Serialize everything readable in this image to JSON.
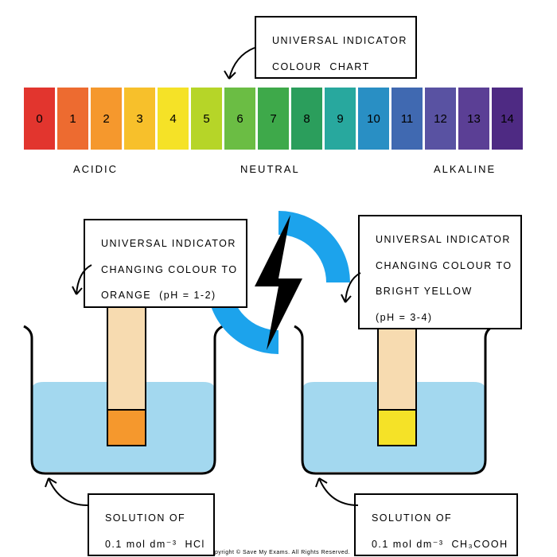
{
  "title_box": {
    "line1": "UNIVERSAL INDICATOR",
    "line2": "COLOUR  CHART"
  },
  "ph_scale": {
    "cells": [
      {
        "label": "0",
        "color": "#e2352e"
      },
      {
        "label": "1",
        "color": "#ed6b30"
      },
      {
        "label": "2",
        "color": "#f5982d"
      },
      {
        "label": "3",
        "color": "#f7c02b"
      },
      {
        "label": "4",
        "color": "#f5e227"
      },
      {
        "label": "5",
        "color": "#b6d528"
      },
      {
        "label": "6",
        "color": "#6bbd44"
      },
      {
        "label": "7",
        "color": "#3ea94a"
      },
      {
        "label": "8",
        "color": "#2b9e5c"
      },
      {
        "label": "9",
        "color": "#28a89e"
      },
      {
        "label": "10",
        "color": "#298fc4"
      },
      {
        "label": "11",
        "color": "#4069b1"
      },
      {
        "label": "12",
        "color": "#5952a2"
      },
      {
        "label": "13",
        "color": "#5b3f95"
      },
      {
        "label": "14",
        "color": "#4e2a83"
      }
    ]
  },
  "range_labels": {
    "acidic": "ACIDIC",
    "neutral": "NEUTRAL",
    "alkaline": "ALKALINE"
  },
  "watermark": {
    "ring_color": "#1ca3ec",
    "bolt_color": "#000000"
  },
  "left_experiment": {
    "indicator_label": {
      "line1": "UNIVERSAL INDICATOR",
      "line2": "CHANGING COLOUR TO",
      "line3": "ORANGE  (pH = 1-2)"
    },
    "solution_label": {
      "line1": "SOLUTION OF",
      "line2": "0.1 mol dm⁻³  HCl"
    },
    "strip_top_color": "#f7dbb0",
    "strip_tip_color": "#f5982d",
    "water_color": "#a3d8ef",
    "beaker_stroke": "#000000"
  },
  "right_experiment": {
    "indicator_label": {
      "line1": "UNIVERSAL INDICATOR",
      "line2": "CHANGING COLOUR TO",
      "line3": "BRIGHT YELLOW",
      "line4": "(pH = 3-4)"
    },
    "solution_label": {
      "line1": "SOLUTION OF",
      "line2": "0.1 mol dm⁻³  CH₃COOH"
    },
    "strip_top_color": "#f7dbb0",
    "strip_tip_color": "#f5e227",
    "water_color": "#a3d8ef",
    "beaker_stroke": "#000000"
  },
  "copyright": "Copyright © Save My Exams. All Rights Reserved."
}
